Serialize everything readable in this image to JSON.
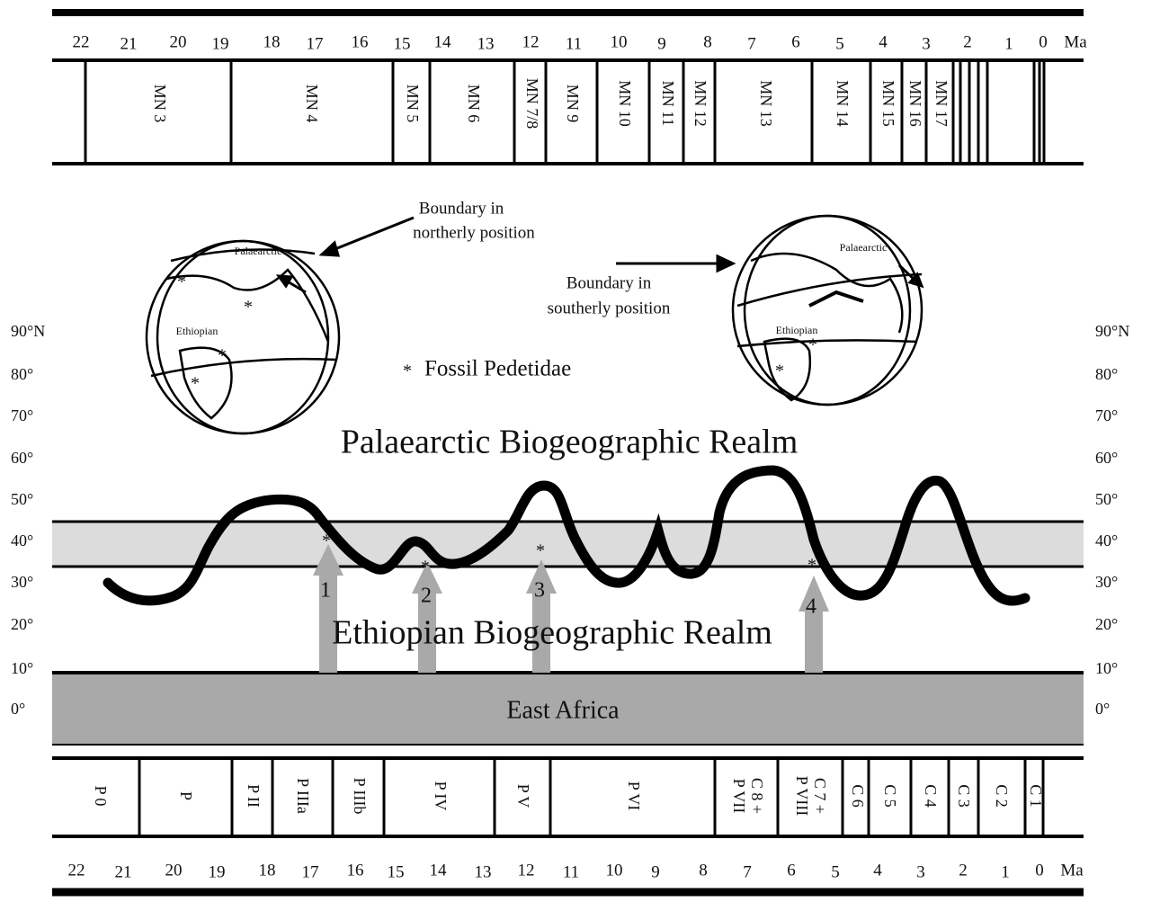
{
  "top_axis": {
    "ticks": [
      "22",
      "21",
      "20",
      "19",
      "18",
      "17",
      "16",
      "15",
      "14",
      "13",
      "12",
      "11",
      "10",
      "9",
      "8",
      "7",
      "6",
      "5",
      "4",
      "3",
      "2",
      "1",
      "0"
    ],
    "unit": "Ma"
  },
  "mn_zones": [
    "MN 3",
    "MN 4",
    "MN 5",
    "MN 6",
    "MN 7/8",
    "MN 9",
    "MN 10",
    "MN 11",
    "MN 12",
    "MN 13",
    "MN 14",
    "MN 15",
    "MN 16",
    "MN 17"
  ],
  "globe_left": {
    "north_label": "Palaearctic",
    "south_label": "Ethiopian",
    "annotation": [
      "Boundary in",
      "northerly position"
    ]
  },
  "globe_right": {
    "north_label": "Palaearctic",
    "south_label": "Ethiopian",
    "annotation": [
      "Boundary in",
      "southerly position"
    ]
  },
  "legend": "Fossil Pedetidae",
  "latitudes": [
    "90°N",
    "80°",
    "70°",
    "60°",
    "50°",
    "40°",
    "30°",
    "20°",
    "10°",
    "0°"
  ],
  "realms": {
    "north": "Palaearctic Biogeographic Realm",
    "south": "Ethiopian Biogeographic Realm",
    "base": "East Africa"
  },
  "events": [
    "1",
    "2",
    "3",
    "4"
  ],
  "p_zones": [
    [
      "P 0"
    ],
    [
      "P"
    ],
    [
      "P II"
    ],
    [
      "P IIIa"
    ],
    [
      "P IIIb"
    ],
    [
      "P IV"
    ],
    [
      "P V"
    ],
    [
      "P VI"
    ],
    [
      "C 8 +",
      "P VII"
    ],
    [
      "C 7 +",
      "P VIII"
    ],
    [
      "C 6"
    ],
    [
      "C 5"
    ],
    [
      "C 4"
    ],
    [
      "C 3"
    ],
    [
      "C 2"
    ],
    [
      "C 1"
    ]
  ],
  "bottom_axis": {
    "ticks": [
      "22",
      "21",
      "20",
      "19",
      "18",
      "17",
      "16",
      "15",
      "14",
      "13",
      "12",
      "11",
      "10",
      "9",
      "8",
      "7",
      "6",
      "5",
      "4",
      "3",
      "2",
      "1",
      "0"
    ],
    "unit": "Ma"
  }
}
